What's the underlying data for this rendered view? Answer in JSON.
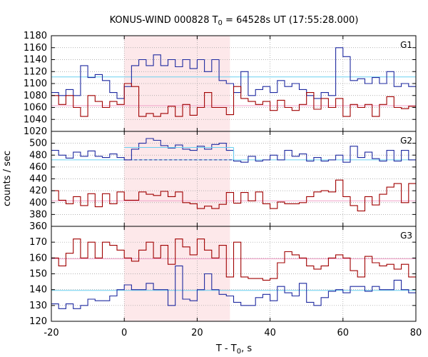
{
  "chart_data": {
    "type": "line",
    "title_main": "KONUS-WIND 000828 T",
    "title_sub": "0",
    "title_rest": " = 64528s UT (17:55:28.000)",
    "xlabel_main": "T - T",
    "xlabel_sub": "0",
    "xlabel_rest": ", s",
    "ylabel": "counts / sec",
    "xlim": [
      -20,
      80
    ],
    "x_ticks": [
      -20,
      0,
      20,
      40,
      60,
      80
    ],
    "highlight_interval": [
      0,
      29
    ],
    "colors": {
      "series_a": "#1f2aa0",
      "series_b": "#a00000",
      "background_a": "#6ad0f0",
      "background_b": "#f0a0c8",
      "highlight": "#fde8ea"
    },
    "panels": [
      {
        "name": "G1",
        "ylim": [
          1020,
          1180
        ],
        "y_ticks": [
          1020,
          1040,
          1060,
          1080,
          1100,
          1120,
          1140,
          1160,
          1180
        ],
        "background_a": 1111,
        "background_b": 1063,
        "series": [
          {
            "edges": [
              -20,
              -18,
              -16,
              -14,
              -12,
              -10,
              -8,
              -6,
              -4,
              -2,
              0,
              2,
              4,
              6,
              8,
              10,
              12,
              14,
              16,
              18,
              20,
              22,
              24,
              26,
              28,
              30,
              32,
              34,
              36,
              38,
              40,
              42,
              44,
              46,
              48,
              50,
              52,
              54,
              56,
              58,
              60,
              62,
              64,
              66,
              68,
              70,
              72,
              74,
              76,
              78,
              80
            ],
            "values": [
              1085,
              1080,
              1090,
              1080,
              1130,
              1110,
              1115,
              1105,
              1085,
              1075,
              1095,
              1130,
              1140,
              1130,
              1148,
              1130,
              1140,
              1128,
              1140,
              1125,
              1140,
              1120,
              1140,
              1105,
              1100,
              1085,
              1120,
              1080,
              1090,
              1095,
              1085,
              1105,
              1095,
              1100,
              1090,
              1080,
              1075,
              1085,
              1080,
              1160,
              1145,
              1105,
              1108,
              1100,
              1110,
              1100,
              1120,
              1095,
              1100,
              1095
            ]
          },
          {
            "edges": [
              -20,
              -18,
              -16,
              -14,
              -12,
              -10,
              -8,
              -6,
              -4,
              -2,
              0,
              2,
              4,
              6,
              8,
              10,
              12,
              14,
              16,
              18,
              20,
              22,
              24,
              26,
              28,
              30,
              32,
              34,
              36,
              38,
              40,
              42,
              44,
              46,
              48,
              50,
              52,
              54,
              56,
              58,
              60,
              62,
              64,
              66,
              68,
              70,
              72,
              74,
              76,
              78,
              80
            ],
            "values": [
              1080,
              1065,
              1080,
              1060,
              1045,
              1080,
              1070,
              1060,
              1070,
              1065,
              1100,
              1095,
              1045,
              1050,
              1045,
              1050,
              1062,
              1045,
              1065,
              1047,
              1060,
              1085,
              1060,
              1060,
              1048,
              1095,
              1075,
              1070,
              1065,
              1070,
              1055,
              1072,
              1060,
              1055,
              1065,
              1085,
              1057,
              1075,
              1060,
              1075,
              1045,
              1065,
              1060,
              1065,
              1045,
              1065,
              1078,
              1060,
              1058,
              1062
            ]
          }
        ]
      },
      {
        "name": "G2",
        "ylim": [
          360,
          520
        ],
        "y_ticks": [
          360,
          380,
          400,
          420,
          440,
          460,
          480,
          500
        ],
        "background_a": 472,
        "background_b": 403,
        "fit_segment": {
          "x": [
            0,
            30
          ],
          "solid": 493,
          "dashed": 472
        },
        "series": [
          {
            "edges": [
              -20,
              -18,
              -16,
              -14,
              -12,
              -10,
              -8,
              -6,
              -4,
              -2,
              0,
              2,
              4,
              6,
              8,
              10,
              12,
              14,
              16,
              18,
              20,
              22,
              24,
              26,
              28,
              30,
              32,
              34,
              36,
              38,
              40,
              42,
              44,
              46,
              48,
              50,
              52,
              54,
              56,
              58,
              60,
              62,
              64,
              66,
              68,
              70,
              72,
              74,
              76,
              78,
              80
            ],
            "values": [
              488,
              480,
              475,
              485,
              478,
              487,
              478,
              476,
              482,
              476,
              472,
              490,
              500,
              508,
              505,
              496,
              492,
              497,
              490,
              488,
              495,
              490,
              498,
              500,
              488,
              470,
              468,
              478,
              470,
              472,
              480,
              472,
              488,
              478,
              482,
              470,
              476,
              470,
              472,
              480,
              468,
              495,
              476,
              485,
              474,
              470,
              488,
              470,
              488,
              472
            ]
          },
          {
            "edges": [
              -20,
              -18,
              -16,
              -14,
              -12,
              -10,
              -8,
              -6,
              -4,
              -2,
              0,
              2,
              4,
              6,
              8,
              10,
              12,
              14,
              16,
              18,
              20,
              22,
              24,
              26,
              28,
              30,
              32,
              34,
              36,
              38,
              40,
              42,
              44,
              46,
              48,
              50,
              52,
              54,
              56,
              58,
              60,
              62,
              64,
              66,
              68,
              70,
              72,
              74,
              76,
              78,
              80
            ],
            "values": [
              420,
              404,
              398,
              410,
              395,
              415,
              393,
              415,
              398,
              418,
              404,
              404,
              418,
              414,
              412,
              419,
              410,
              418,
              400,
              398,
              390,
              394,
              390,
              397,
              417,
              399,
              417,
              403,
              418,
              398,
              390,
              401,
              398,
              398,
              400,
              410,
              418,
              420,
              418,
              438,
              410,
              395,
              386,
              410,
              396,
              414,
              426,
              432,
              400,
              432
            ]
          }
        ]
      },
      {
        "name": "G3",
        "ylim": [
          120,
          180
        ],
        "y_ticks": [
          120,
          130,
          140,
          150,
          160,
          170
        ],
        "background_a": 139.5,
        "background_b": 159.5,
        "series": [
          {
            "edges": [
              -20,
              -18,
              -16,
              -14,
              -12,
              -10,
              -8,
              -6,
              -4,
              -2,
              0,
              2,
              4,
              6,
              8,
              10,
              12,
              14,
              16,
              18,
              20,
              22,
              24,
              26,
              28,
              30,
              32,
              34,
              36,
              38,
              40,
              42,
              44,
              46,
              48,
              50,
              52,
              54,
              56,
              58,
              60,
              62,
              64,
              66,
              68,
              70,
              72,
              74,
              76,
              78,
              80
            ],
            "values": [
              131,
              128,
              131,
              128,
              130,
              134,
              133,
              133,
              136,
              140,
              143,
              140,
              140,
              144,
              140,
              140,
              130,
              155,
              134,
              133,
              140,
              150,
              140,
              137,
              136,
              132,
              130,
              130,
              135,
              137,
              133,
              142,
              138,
              136,
              144,
              132,
              130,
              135,
              139,
              140,
              138,
              142,
              142,
              139,
              142,
              140,
              140,
              146,
              140,
              138
            ]
          },
          {
            "edges": [
              -20,
              -18,
              -16,
              -14,
              -12,
              -10,
              -8,
              -6,
              -4,
              -2,
              0,
              2,
              4,
              6,
              8,
              10,
              12,
              14,
              16,
              18,
              20,
              22,
              24,
              26,
              28,
              30,
              32,
              34,
              36,
              38,
              40,
              42,
              44,
              46,
              48,
              50,
              52,
              54,
              56,
              58,
              60,
              62,
              64,
              66,
              68,
              70,
              72,
              74,
              76,
              78,
              80
            ],
            "values": [
              160,
              155,
              163,
              172,
              160,
              170,
              160,
              170,
              168,
              165,
              160,
              158,
              165,
              170,
              160,
              168,
              156,
              172,
              167,
              162,
              172,
              165,
              160,
              168,
              148,
              170,
              148,
              147,
              147,
              146,
              147,
              157,
              164,
              162,
              160,
              155,
              153,
              155,
              160,
              162,
              160,
              152,
              148,
              161,
              157,
              155,
              156,
              153,
              156,
              148
            ]
          }
        ]
      }
    ]
  }
}
